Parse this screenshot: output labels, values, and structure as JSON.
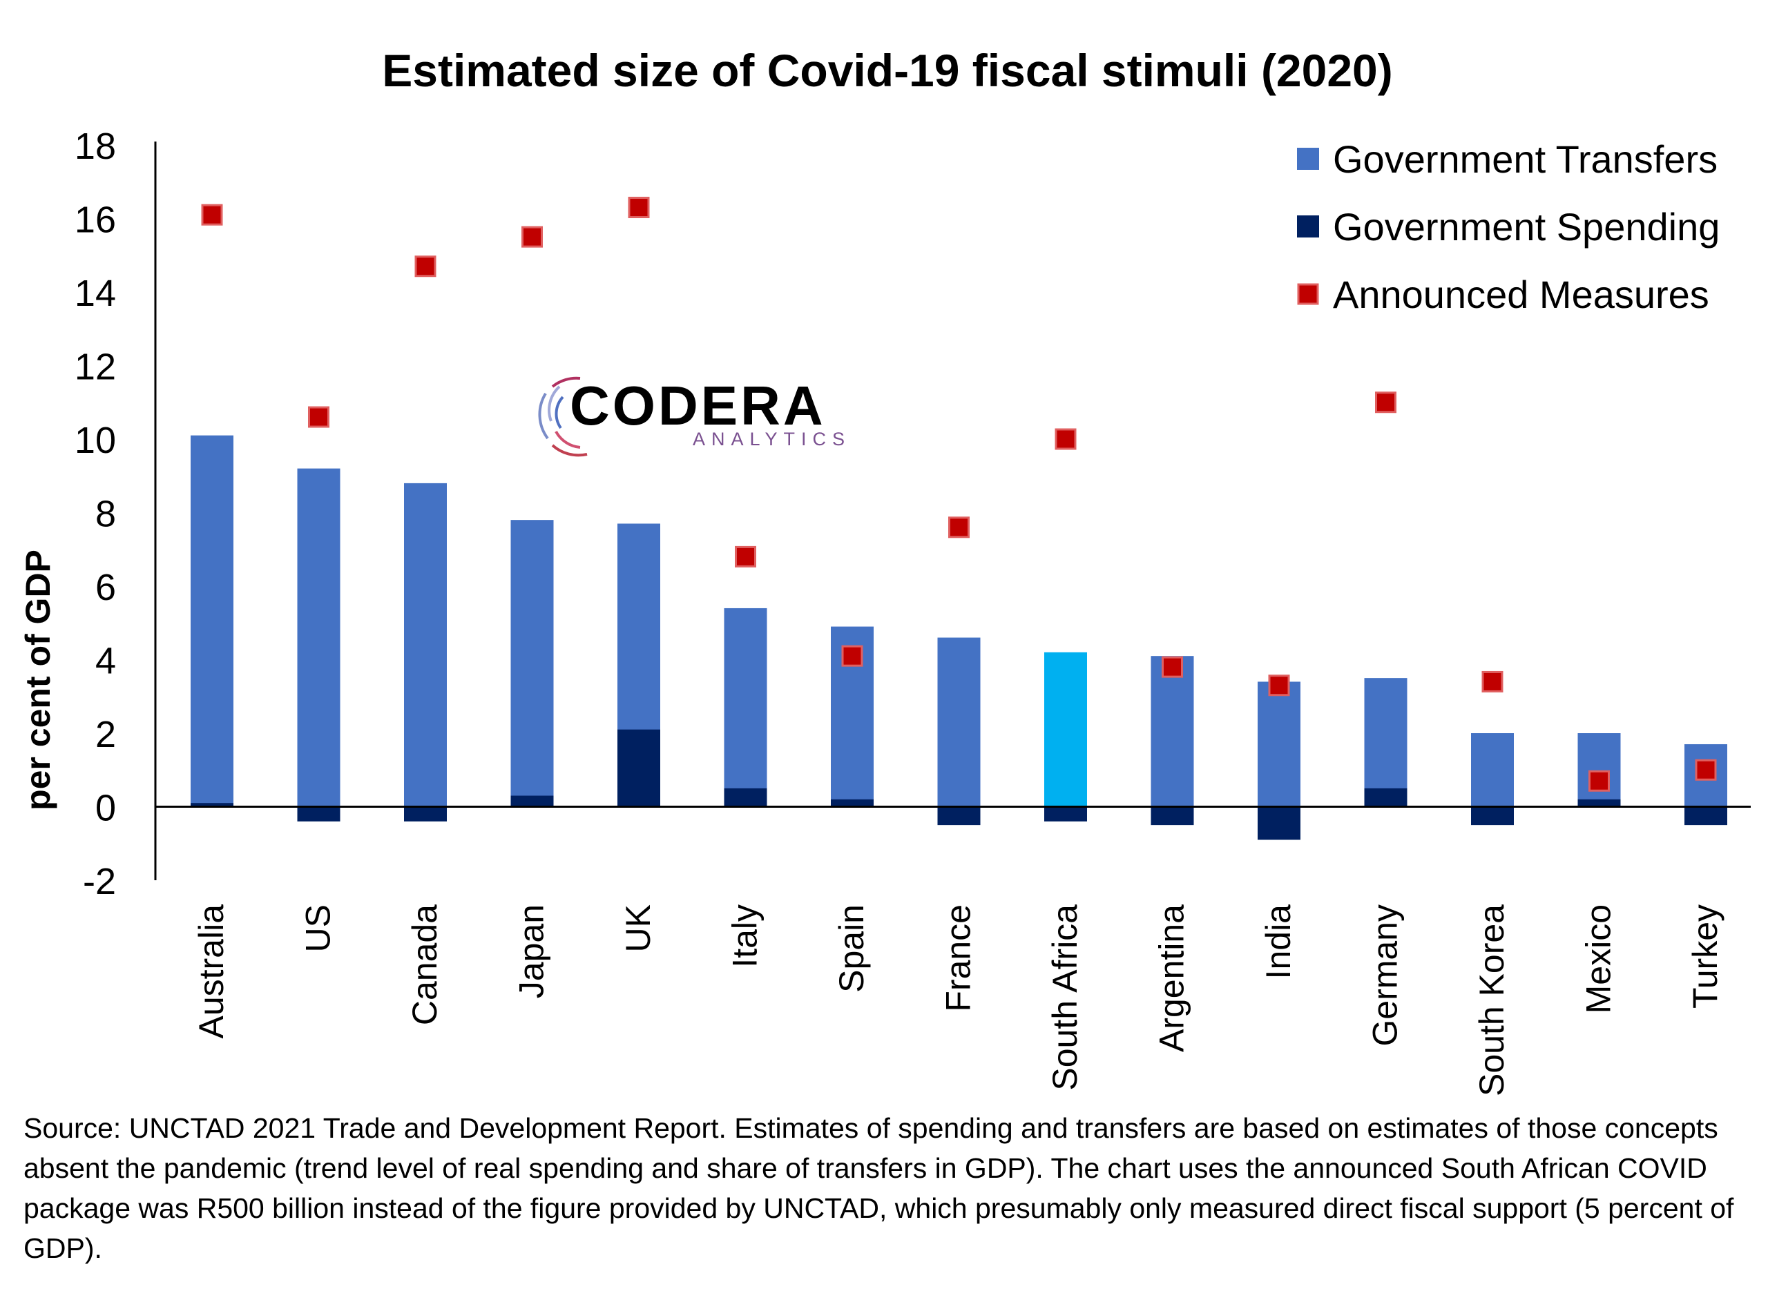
{
  "chart_data": {
    "type": "bar",
    "title": "Estimated size of Covid-19 fiscal stimuli (2020)",
    "ylabel": "per cent of GDP",
    "xlabel": "",
    "ylim": [
      -2,
      18
    ],
    "yticks": [
      -2,
      0,
      2,
      4,
      6,
      8,
      10,
      12,
      14,
      16,
      18
    ],
    "grid": false,
    "legend_position": "top-right",
    "categories": [
      "Australia",
      "US",
      "Canada",
      "Japan",
      "UK",
      "Italy",
      "Spain",
      "France",
      "South Africa",
      "Argentina",
      "India",
      "Germany",
      "South Korea",
      "Mexico",
      "Turkey"
    ],
    "highlight_category": "South Africa",
    "series": [
      {
        "name": "Government Transfers",
        "kind": "bar",
        "color": "#4472C4",
        "values": [
          10.1,
          9.2,
          8.8,
          7.8,
          7.7,
          5.4,
          4.9,
          4.6,
          4.2,
          4.1,
          3.4,
          3.5,
          2.0,
          2.0,
          1.7
        ]
      },
      {
        "name": "Government Spending",
        "kind": "bar",
        "color": "#002060",
        "values": [
          0.1,
          -0.4,
          -0.4,
          0.3,
          2.1,
          0.5,
          0.2,
          -0.5,
          -0.4,
          -0.5,
          -0.9,
          0.5,
          -0.5,
          0.2,
          -0.5
        ]
      },
      {
        "name": "Announced Measures",
        "kind": "marker",
        "color": "#C00000",
        "values": [
          16.1,
          10.6,
          14.7,
          15.5,
          16.3,
          6.8,
          4.1,
          7.6,
          10.0,
          3.8,
          3.3,
          11.0,
          3.4,
          0.7,
          1.0
        ]
      }
    ],
    "highlight_color": "#00B0F0"
  },
  "logo": {
    "name": "CODERA",
    "tagline": "ANALYTICS"
  },
  "source_note": "Source: UNCTAD 2021 Trade and Development Report. Estimates of spending and transfers are based on estimates of those concepts absent the pandemic (trend level of real spending and share of transfers in GDP). The chart uses the announced South African COVID package was R500 billion instead of the figure provided by UNCTAD, which presumably only measured direct fiscal support (5 percent of GDP)."
}
